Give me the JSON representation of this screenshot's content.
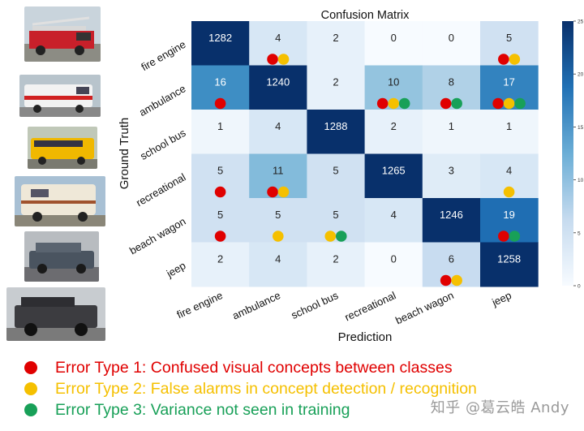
{
  "chart_data": {
    "type": "heatmap",
    "title": "Confusion Matrix",
    "xlabel": "Prediction",
    "ylabel": "Ground Truth",
    "x_categories": [
      "fire engine",
      "ambulance",
      "school bus",
      "recreational",
      "beach wagon",
      "jeep"
    ],
    "y_categories": [
      "fire engine",
      "ambulance",
      "school bus",
      "recreational",
      "beach wagon",
      "jeep"
    ],
    "values": [
      [
        1282,
        4,
        2,
        0,
        0,
        5
      ],
      [
        16,
        1240,
        2,
        10,
        8,
        17
      ],
      [
        1,
        4,
        1288,
        2,
        1,
        1
      ],
      [
        5,
        11,
        5,
        1265,
        3,
        4
      ],
      [
        5,
        5,
        5,
        4,
        1246,
        19
      ],
      [
        2,
        4,
        2,
        0,
        6,
        1258
      ]
    ],
    "colorbar": {
      "min": 0,
      "max": 25,
      "ticks": [
        0,
        5,
        10,
        15,
        20,
        25
      ],
      "colormap": "Blues"
    },
    "error_markers": [
      {
        "row": 0,
        "col": 1,
        "types": [
          1,
          2
        ]
      },
      {
        "row": 0,
        "col": 5,
        "types": [
          1,
          2
        ]
      },
      {
        "row": 1,
        "col": 0,
        "types": [
          1
        ]
      },
      {
        "row": 1,
        "col": 3,
        "types": [
          1,
          2,
          3
        ]
      },
      {
        "row": 1,
        "col": 4,
        "types": [
          1,
          3
        ]
      },
      {
        "row": 1,
        "col": 5,
        "types": [
          1,
          2,
          3
        ]
      },
      {
        "row": 3,
        "col": 0,
        "types": [
          1
        ]
      },
      {
        "row": 3,
        "col": 1,
        "types": [
          1,
          2
        ]
      },
      {
        "row": 3,
        "col": 5,
        "types": [
          2
        ]
      },
      {
        "row": 4,
        "col": 0,
        "types": [
          1
        ]
      },
      {
        "row": 4,
        "col": 1,
        "types": [
          2
        ]
      },
      {
        "row": 4,
        "col": 2,
        "types": [
          2,
          3
        ]
      },
      {
        "row": 4,
        "col": 5,
        "types": [
          1,
          3
        ]
      },
      {
        "row": 5,
        "col": 4,
        "types": [
          1,
          2
        ]
      }
    ]
  },
  "legend": {
    "items": [
      {
        "text": "Error Type 1: Confused visual concepts between classes",
        "color": "#e00000"
      },
      {
        "text": "Error Type 2: False alarms in concept detection / recognition",
        "color": "#f5c000"
      },
      {
        "text": "Error Type 3: Variance not seen in training",
        "color": "#18a058"
      }
    ]
  },
  "thumbnails": [
    "fire-engine-photo",
    "ambulance-photo",
    "school-bus-photo",
    "recreational-vehicle-photo",
    "beach-wagon-photo",
    "jeep-photo"
  ],
  "watermark": "知乎 @葛云皓 Andy"
}
